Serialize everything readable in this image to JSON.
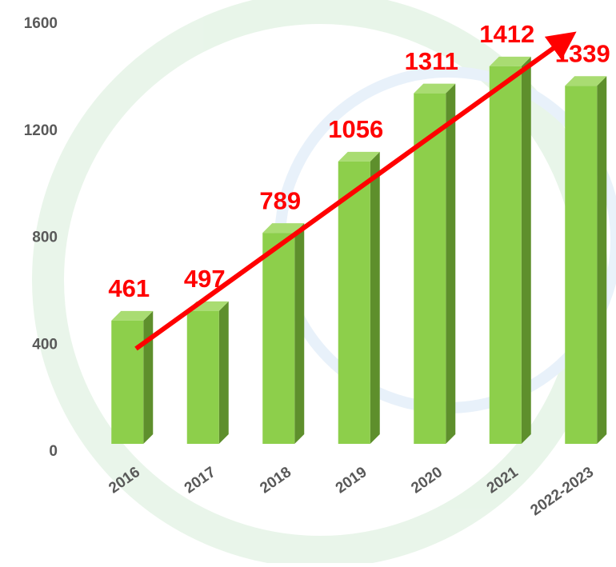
{
  "chart_data": {
    "type": "bar3d",
    "categories": [
      "2016",
      "2017",
      "2018",
      "2019",
      "2020",
      "2021",
      "2022-2023"
    ],
    "values": [
      461,
      497,
      789,
      1056,
      1311,
      1412,
      1339
    ],
    "color": "#8dcf4b",
    "label_color": "#ff0000",
    "ylim": [
      0,
      1600
    ],
    "yticks": [
      0,
      400,
      800,
      1200,
      1600
    ]
  }
}
